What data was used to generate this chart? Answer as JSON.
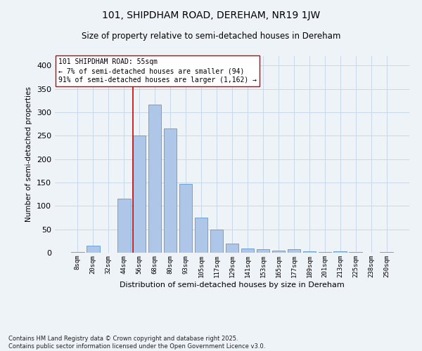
{
  "title": "101, SHIPDHAM ROAD, DEREHAM, NR19 1JW",
  "subtitle": "Size of property relative to semi-detached houses in Dereham",
  "xlabel": "Distribution of semi-detached houses by size in Dereham",
  "ylabel": "Number of semi-detached properties",
  "categories": [
    "8sqm",
    "20sqm",
    "32sqm",
    "44sqm",
    "56sqm",
    "68sqm",
    "80sqm",
    "93sqm",
    "105sqm",
    "117sqm",
    "129sqm",
    "141sqm",
    "153sqm",
    "165sqm",
    "177sqm",
    "189sqm",
    "201sqm",
    "213sqm",
    "225sqm",
    "238sqm",
    "250sqm"
  ],
  "values": [
    2,
    15,
    0,
    115,
    250,
    317,
    265,
    147,
    75,
    50,
    20,
    9,
    8,
    5,
    7,
    3,
    1,
    3,
    1,
    0,
    1
  ],
  "bar_color": "#aec6e8",
  "bar_edgecolor": "#5b9bd5",
  "grid_color": "#c8d8e8",
  "background_color": "#eef3f8",
  "annotation_text": "101 SHIPDHAM ROAD: 55sqm\n← 7% of semi-detached houses are smaller (94)\n91% of semi-detached houses are larger (1,162) →",
  "vline_x_index": 4,
  "vline_color": "#cc0000",
  "ylim": [
    0,
    420
  ],
  "yticks": [
    0,
    50,
    100,
    150,
    200,
    250,
    300,
    350,
    400
  ],
  "footer": "Contains HM Land Registry data © Crown copyright and database right 2025.\nContains public sector information licensed under the Open Government Licence v3.0."
}
